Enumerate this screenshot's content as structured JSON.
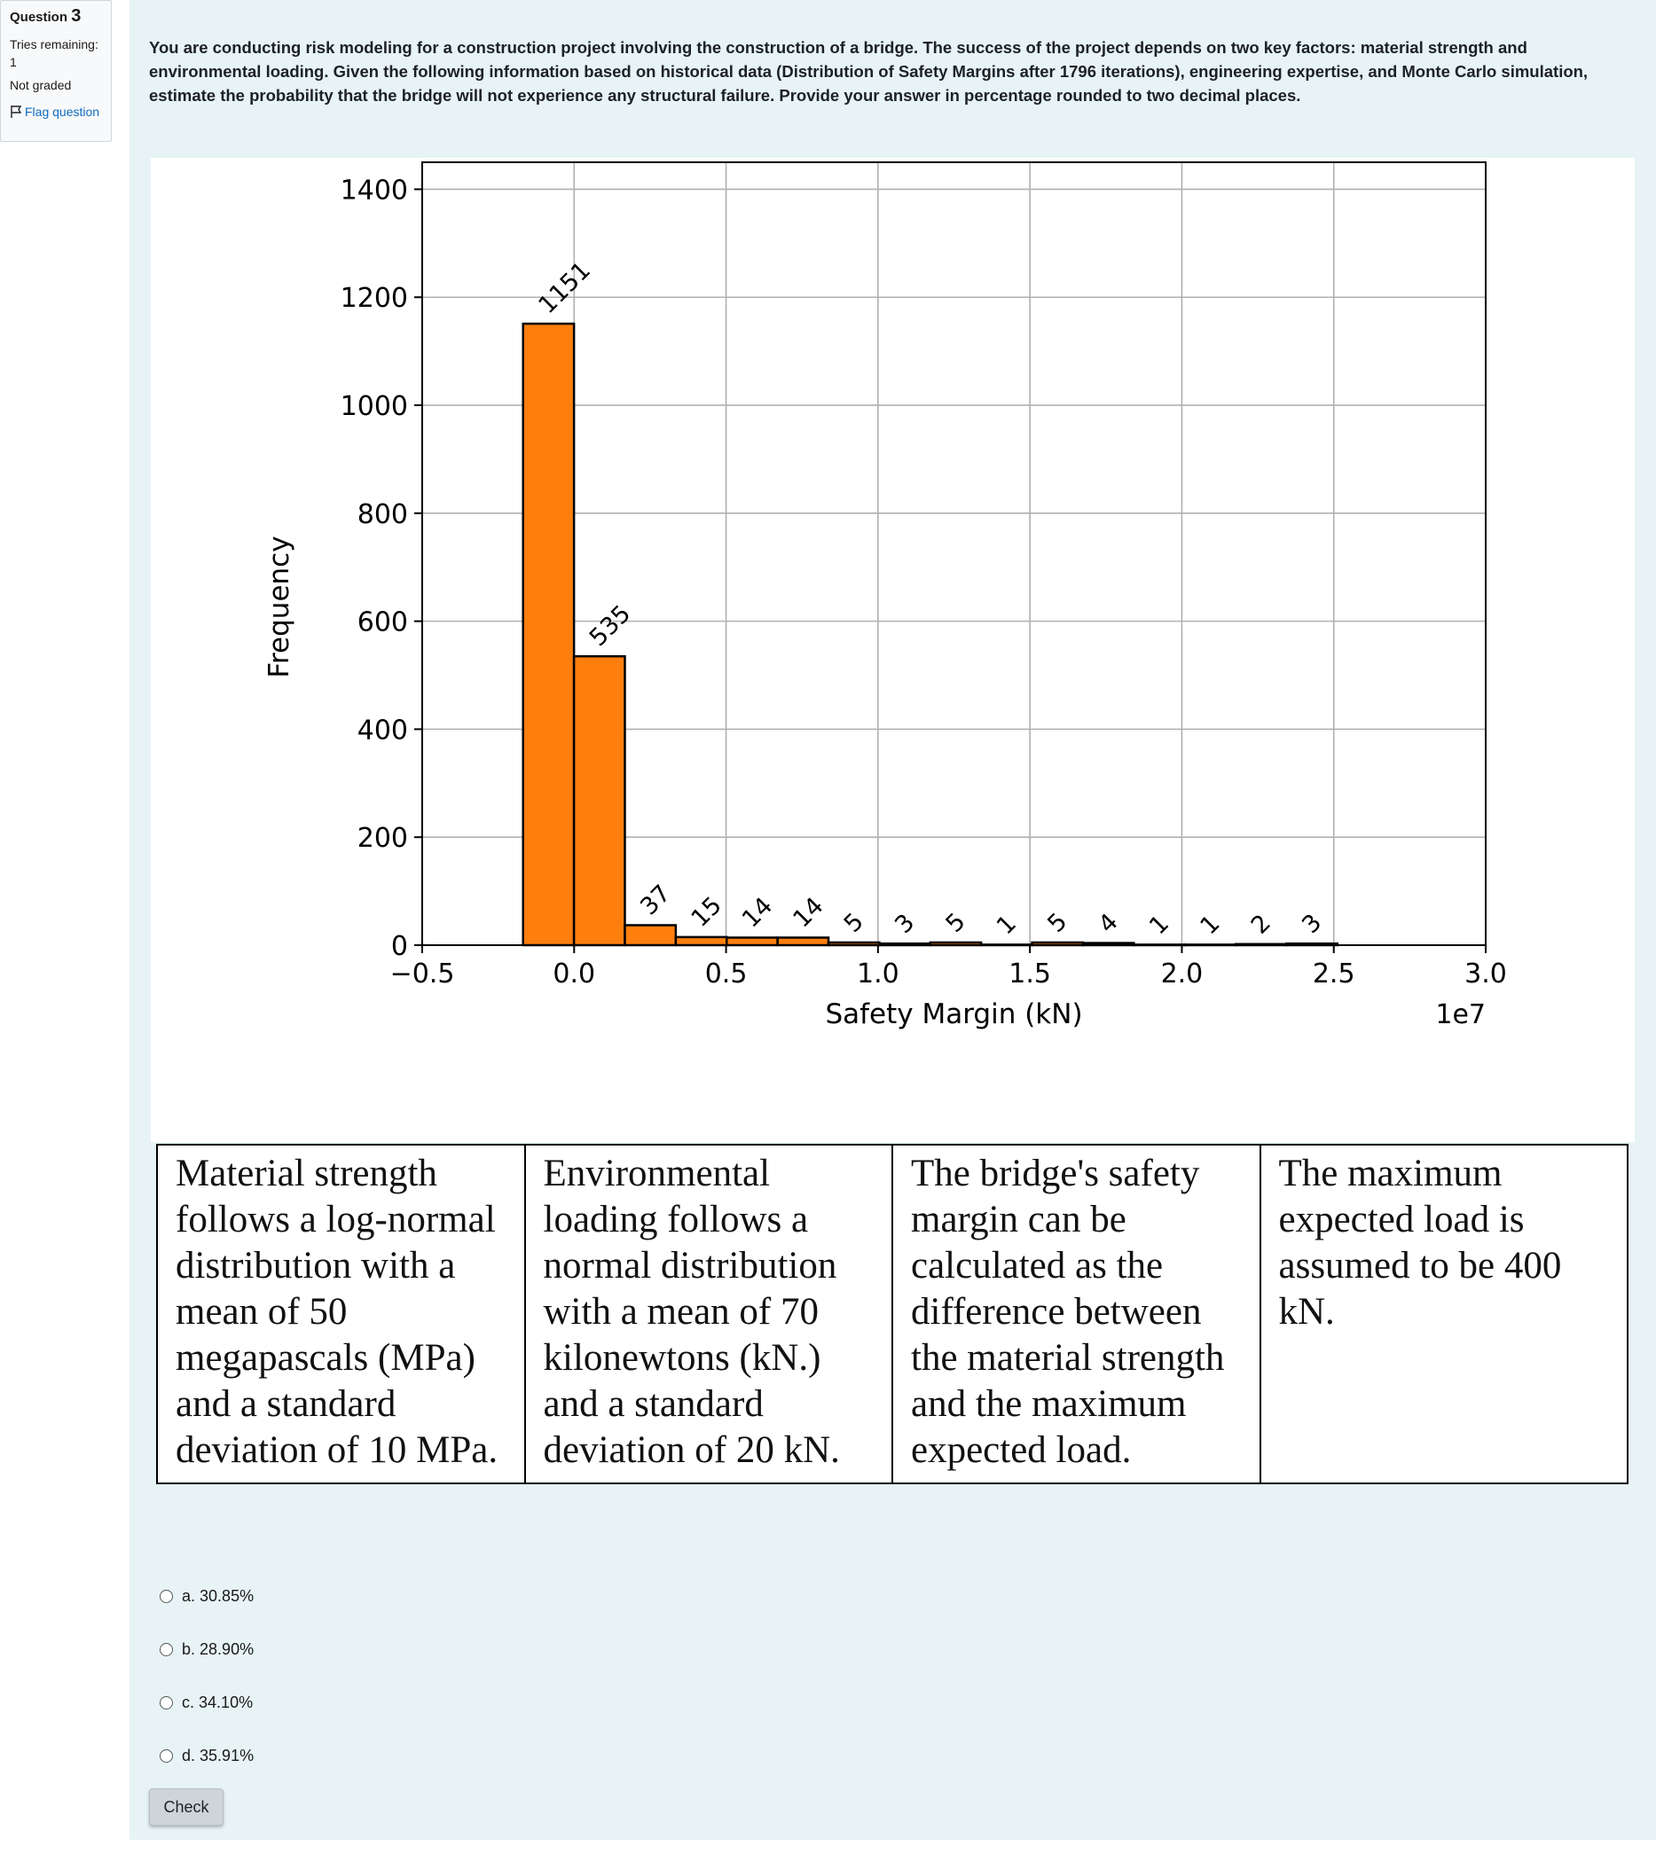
{
  "info": {
    "question_label": "Question",
    "question_number": "3",
    "tries_label": "Tries remaining:",
    "tries_value": "1",
    "grade_status": "Not graded",
    "flag_label": "Flag question"
  },
  "question_text": "You are conducting risk modeling for a construction project involving the construction of a bridge. The success of the project depends on two key factors: material strength and environmental loading. Given the following information based on historical data (Distribution of Safety Margins after 1796 iterations), engineering expertise, and Monte Carlo simulation, estimate the probability that the bridge will not experience any structural failure. Provide your answer in percentage rounded to two decimal places.",
  "chart_data": {
    "type": "bar",
    "title": "",
    "xlabel": "Safety Margin (kN)",
    "ylabel": "Frequency",
    "x_offset_label": "1e7",
    "x_scale_factor": 10000000,
    "xlim": [
      -0.5,
      3.0
    ],
    "ylim": [
      0,
      1450
    ],
    "x_ticks": [
      -0.5,
      0.0,
      0.5,
      1.0,
      1.5,
      2.0,
      2.5,
      3.0
    ],
    "x_tick_labels": [
      "−0.5",
      "0.0",
      "0.5",
      "1.0",
      "1.5",
      "2.0",
      "2.5",
      "3.0"
    ],
    "y_ticks": [
      0,
      200,
      400,
      600,
      800,
      1000,
      1200,
      1400
    ],
    "y_tick_labels": [
      "0",
      "200",
      "400",
      "600",
      "800",
      "1000",
      "1200",
      "1400"
    ],
    "grid": true,
    "bar_color": "#ff7f0e",
    "bin_start": -0.168,
    "bin_width": 0.1675,
    "values": [
      1151,
      535,
      37,
      15,
      14,
      14,
      5,
      3,
      5,
      1,
      5,
      4,
      1,
      1,
      2,
      3
    ],
    "data_labels": [
      "1151",
      "535",
      "37",
      "15",
      "14",
      "14",
      "5",
      "3",
      "5",
      "1",
      "5",
      "4",
      "1",
      "1",
      "2",
      "3"
    ]
  },
  "facts": [
    "Material strength follows a log-normal distribution with a mean of 50 megapascals (MPa) and a standard deviation of 10 MPa.",
    "Environmental loading follows a normal distribution with a mean of 70 kilonewtons (kN.) and a standard deviation of 20 kN.",
    "The bridge's safety margin can be calculated as the difference between the material strength and the maximum expected load.",
    "The maximum expected load is assumed to be 400 kN."
  ],
  "options": [
    {
      "letter": "a.",
      "text": "30.85%"
    },
    {
      "letter": "b.",
      "text": "28.90%"
    },
    {
      "letter": "c.",
      "text": "34.10%"
    },
    {
      "letter": "d.",
      "text": "35.91%"
    }
  ],
  "check_label": "Check"
}
